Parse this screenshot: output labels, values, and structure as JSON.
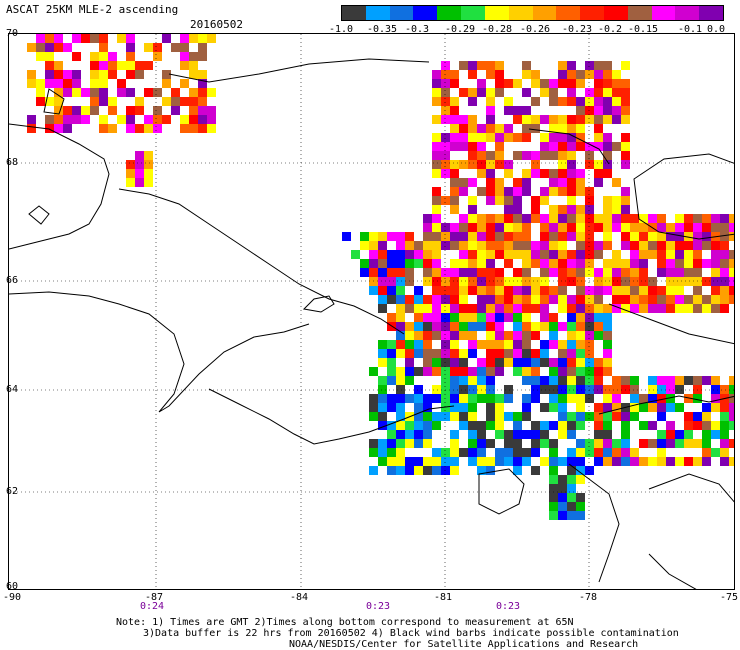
{
  "header": {
    "title": "ASCAT 25KM MLE-2 ascending",
    "date": "20160502"
  },
  "colorbar": {
    "colors": [
      "#3a3a3a",
      "#00a0ff",
      "#1070e0",
      "#0000ff",
      "#00c000",
      "#20e040",
      "#ffff00",
      "#ffd000",
      "#ffa000",
      "#ff6000",
      "#ff2000",
      "#ff0000",
      "#a06040",
      "#ff00ff",
      "#d000d0",
      "#8000b0"
    ],
    "labels": [
      "-1.0",
      "-0.35",
      "-0.3",
      "-0.29",
      "-0.28",
      "-0.26",
      "-0.23",
      "-0.2",
      "-0.15",
      "-0.1",
      "0.0"
    ]
  },
  "map": {
    "lat_labels": [
      "70",
      "68",
      "66",
      "64",
      "62",
      "60"
    ],
    "lon_labels": [
      "-90",
      "-87",
      "-84",
      "-81",
      "-78",
      "-75"
    ],
    "times": [
      "0:24",
      "0:23",
      "0:23"
    ]
  },
  "notes": {
    "line1": "Note: 1) Times are GMT 2)Times along bottom correspond to measurement at 65N",
    "line2": "3)Data buffer is 22 hrs from 20160502 4) Black wind barbs indicate possible contamination",
    "line3": "NOAA/NESDIS/Center for Satellite Applications and Research"
  }
}
